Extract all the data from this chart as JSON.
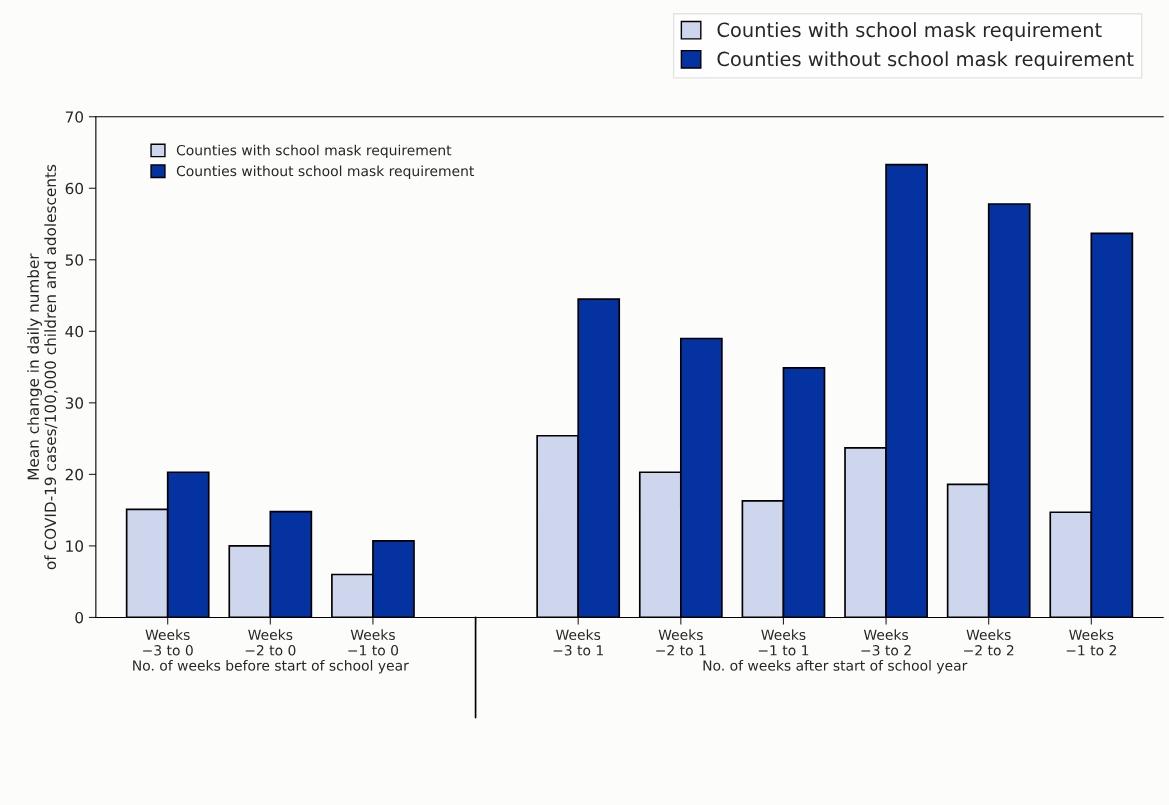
{
  "chart_data": {
    "type": "bar",
    "ylabel": "Mean change in daily number\nof COVID-19 cases/100,000 children and adolescents",
    "categories": [
      "Weeks\n−3 to 0",
      "Weeks\n−2 to 0",
      "Weeks\n−1 to 0",
      null,
      "Weeks\n−3 to 1",
      "Weeks\n−2 to 1",
      "Weeks\n−1 to 1",
      "Weeks\n−3 to 2",
      "Weeks\n−2 to 2",
      "Weeks\n−1 to 2"
    ],
    "series": [
      {
        "name": "Counties with school mask requirement",
        "color": "#cdd6ec",
        "values": [
          15.1,
          10.0,
          6.0,
          null,
          25.4,
          20.3,
          16.3,
          23.7,
          18.6,
          14.7
        ]
      },
      {
        "name": "Counties without school mask requirement",
        "color": "#0432a0",
        "values": [
          20.3,
          14.8,
          10.7,
          null,
          44.5,
          39.0,
          34.9,
          63.3,
          57.8,
          53.7
        ]
      }
    ],
    "annotations": [
      "No. of weeks before start of school year",
      "No. of weeks after start of school year"
    ],
    "ylim": [
      0,
      70
    ],
    "yticks": [
      0,
      10,
      20,
      30,
      40,
      50,
      60,
      70
    ],
    "grid": false,
    "legend": "top left"
  }
}
